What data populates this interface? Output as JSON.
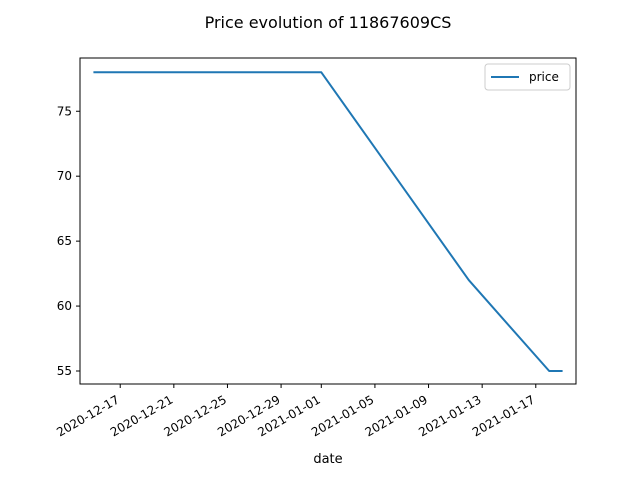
{
  "chart_data": {
    "type": "line",
    "title": "Price evolution of 11867609CS",
    "xlabel": "date",
    "ylabel": "",
    "x_ticks": [
      "2020-12-17",
      "2020-12-21",
      "2020-12-25",
      "2020-12-29",
      "2021-01-01",
      "2021-01-05",
      "2021-01-09",
      "2021-01-13",
      "2021-01-17"
    ],
    "y_ticks": [
      55,
      60,
      65,
      70,
      75
    ],
    "xlim": [
      "2020-12-14",
      "2021-01-20"
    ],
    "ylim": [
      54.0,
      79.1
    ],
    "legend": {
      "position": "top-right"
    },
    "grid": false,
    "series": [
      {
        "name": "price",
        "color": "#1f77b4",
        "x": [
          "2020-12-15",
          "2021-01-01",
          "2021-01-12",
          "2021-01-18",
          "2021-01-19"
        ],
        "y": [
          78,
          78,
          62,
          55,
          55
        ]
      }
    ]
  }
}
